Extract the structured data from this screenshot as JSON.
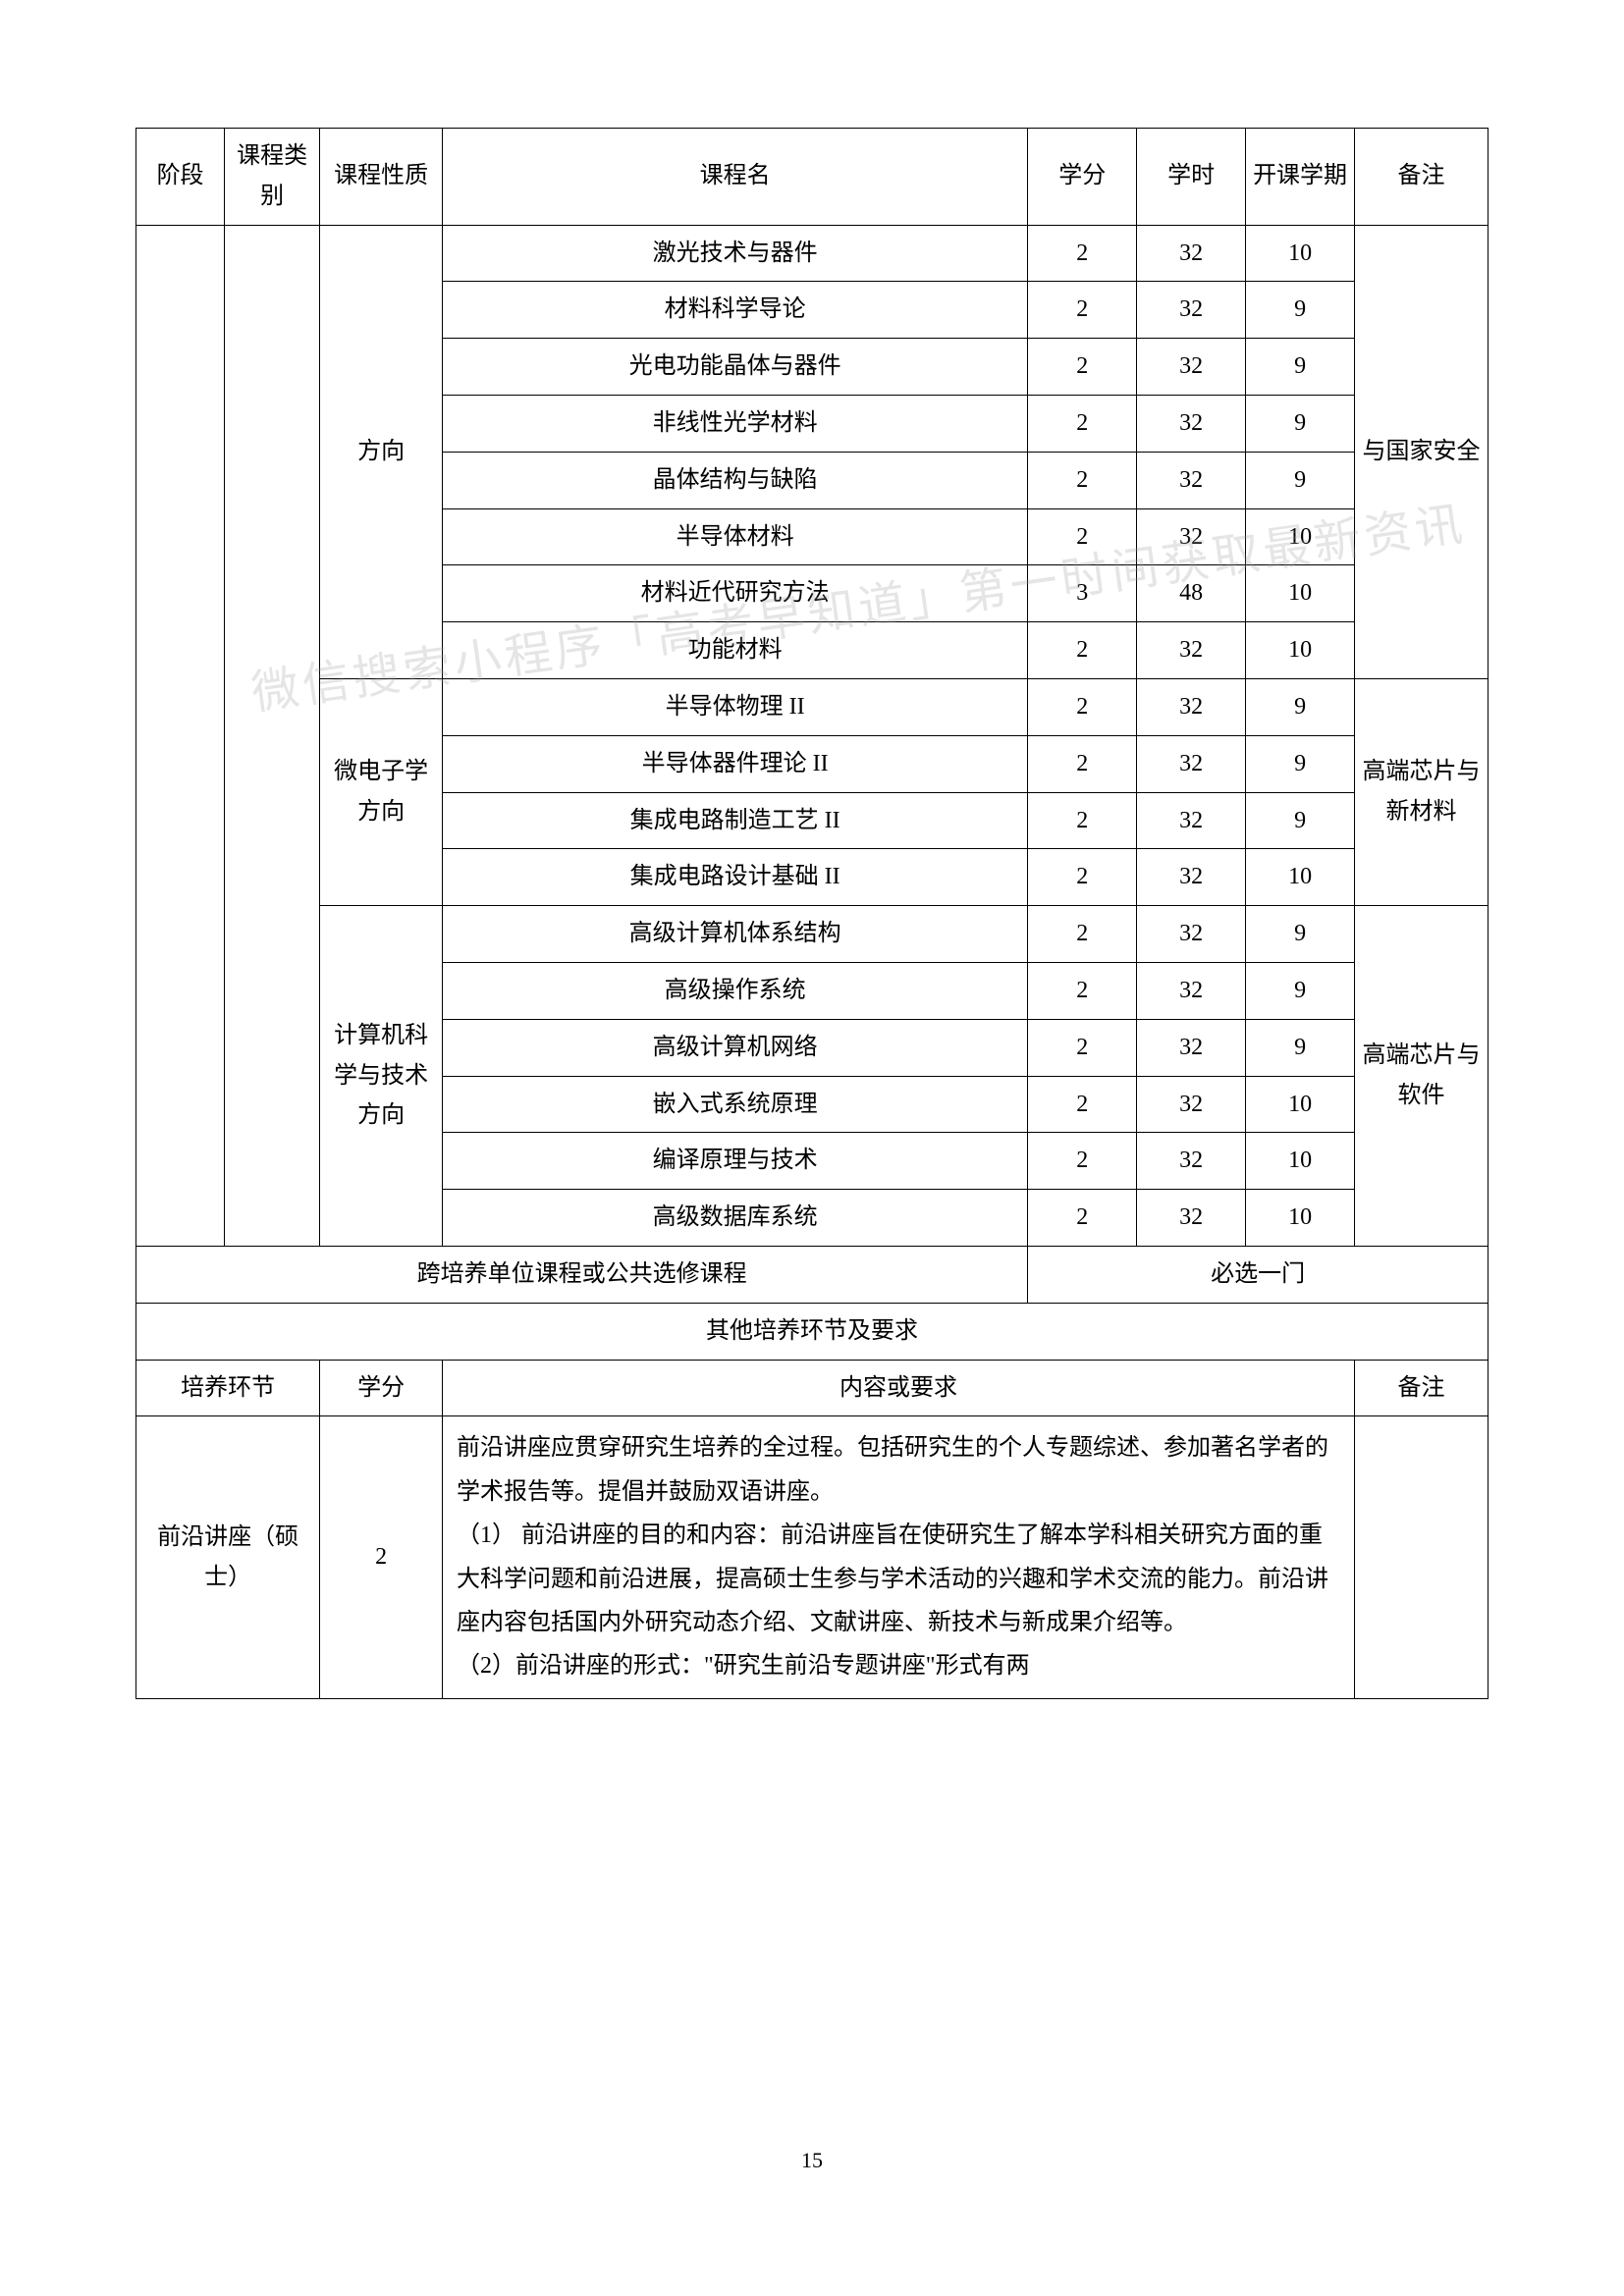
{
  "page": {
    "number": "15",
    "background_color": "#ffffff",
    "border_color": "#000000",
    "font_size_body": 24,
    "font_size_page_num": 22
  },
  "watermark": {
    "text": "微信搜索小程序「高考早知道」第一时间获取最新资讯",
    "color": "rgba(150,150,150,0.25)"
  },
  "headers": {
    "stage": "阶段",
    "category": "课程类别",
    "nature": "课程性质",
    "course_name": "课程名",
    "credit": "学分",
    "hours": "学时",
    "semester": "开课学期",
    "note": "备注"
  },
  "col_widths": {
    "stage": 65,
    "category": 70,
    "nature": 90,
    "name": 430,
    "credit": 80,
    "hours": 80,
    "semester": 80,
    "note": 98
  },
  "directions": {
    "d1": "方向",
    "d2": "微电子学方向",
    "d3": "计算机科学与技术方向"
  },
  "notes": {
    "n1": "与国家安全",
    "n2": "高端芯片与新材料",
    "n3": "高端芯片与软件"
  },
  "courses": {
    "g1": [
      {
        "name": "激光技术与器件",
        "credit": "2",
        "hours": "32",
        "semester": "10"
      },
      {
        "name": "材料科学导论",
        "credit": "2",
        "hours": "32",
        "semester": "9"
      },
      {
        "name": "光电功能晶体与器件",
        "credit": "2",
        "hours": "32",
        "semester": "9"
      },
      {
        "name": "非线性光学材料",
        "credit": "2",
        "hours": "32",
        "semester": "9"
      },
      {
        "name": "晶体结构与缺陷",
        "credit": "2",
        "hours": "32",
        "semester": "9"
      },
      {
        "name": "半导体材料",
        "credit": "2",
        "hours": "32",
        "semester": "10"
      },
      {
        "name": "材料近代研究方法",
        "credit": "3",
        "hours": "48",
        "semester": "10"
      },
      {
        "name": "功能材料",
        "credit": "2",
        "hours": "32",
        "semester": "10"
      }
    ],
    "g2": [
      {
        "name": "半导体物理 II",
        "credit": "2",
        "hours": "32",
        "semester": "9"
      },
      {
        "name": "半导体器件理论 II",
        "credit": "2",
        "hours": "32",
        "semester": "9"
      },
      {
        "name": "集成电路制造工艺 II",
        "credit": "2",
        "hours": "32",
        "semester": "9"
      },
      {
        "name": "集成电路设计基础 II",
        "credit": "2",
        "hours": "32",
        "semester": "10"
      }
    ],
    "g3": [
      {
        "name": "高级计算机体系结构",
        "credit": "2",
        "hours": "32",
        "semester": "9"
      },
      {
        "name": "高级操作系统",
        "credit": "2",
        "hours": "32",
        "semester": "9"
      },
      {
        "name": "高级计算机网络",
        "credit": "2",
        "hours": "32",
        "semester": "9"
      },
      {
        "name": "嵌入式系统原理",
        "credit": "2",
        "hours": "32",
        "semester": "10"
      },
      {
        "name": "编译原理与技术",
        "credit": "2",
        "hours": "32",
        "semester": "10"
      },
      {
        "name": "高级数据库系统",
        "credit": "2",
        "hours": "32",
        "semester": "10"
      }
    ]
  },
  "cross_row": {
    "label": "跨培养单位课程或公共选修课程",
    "requirement": "必选一门"
  },
  "section2_title": "其他培养环节及要求",
  "section2_headers": {
    "segment": "培养环节",
    "credit": "学分",
    "content": "内容或要求",
    "note": "备注"
  },
  "section2_row": {
    "segment": "前沿讲座（硕士）",
    "credit": "2",
    "content": "前沿讲座应贯穿研究生培养的全过程。包括研究生的个人专题综述、参加著名学者的学术报告等。提倡并鼓励双语讲座。\n（1）  前沿讲座的目的和内容：前沿讲座旨在使研究生了解本学科相关研究方面的重大科学问题和前沿进展，提高硕士生参与学术活动的兴趣和学术交流的能力。前沿讲座内容包括国内外研究动态介绍、文献讲座、新技术与新成果介绍等。\n（2）前沿讲座的形式：\"研究生前沿专题讲座\"形式有两"
  }
}
